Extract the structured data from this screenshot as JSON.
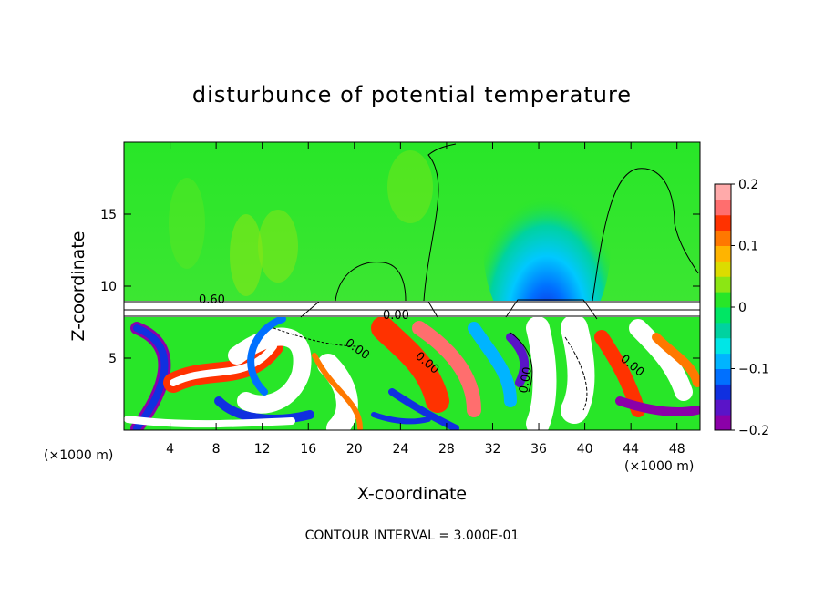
{
  "chart_data": {
    "type": "heatmap",
    "title": "disturbunce of potential temperature",
    "xlabel": "X-coordinate",
    "ylabel": "Z-coordinate",
    "x_unit": "(×1000 m)",
    "footer": "CONTOUR INTERVAL = 3.000E-01",
    "xlim": [
      0,
      50
    ],
    "ylim": [
      0,
      20
    ],
    "x_ticks": [
      4,
      8,
      12,
      16,
      20,
      24,
      28,
      32,
      36,
      40,
      44,
      48
    ],
    "y_ticks": [
      5,
      10,
      15
    ],
    "colorbar": {
      "range": [
        -0.2,
        0.2
      ],
      "ticks": [
        0.2,
        0.1,
        0,
        -0.1,
        -0.2
      ],
      "tick_labels": [
        "0.2",
        "0.1",
        "0",
        "−0.1",
        "−0.2"
      ],
      "colors": [
        "#8b00a8",
        "#5a14c8",
        "#1030e0",
        "#0070ff",
        "#00b4ff",
        "#00e6e6",
        "#00d2a0",
        "#00e664",
        "#28e628",
        "#8ce614",
        "#dcdc00",
        "#ffb400",
        "#ff7800",
        "#ff3200",
        "#ff6e6e",
        "#ffaaaa"
      ]
    },
    "contour_labels": [
      "0.60",
      "0.00",
      "0.00",
      "0.00",
      "0.00",
      "0.00"
    ]
  }
}
